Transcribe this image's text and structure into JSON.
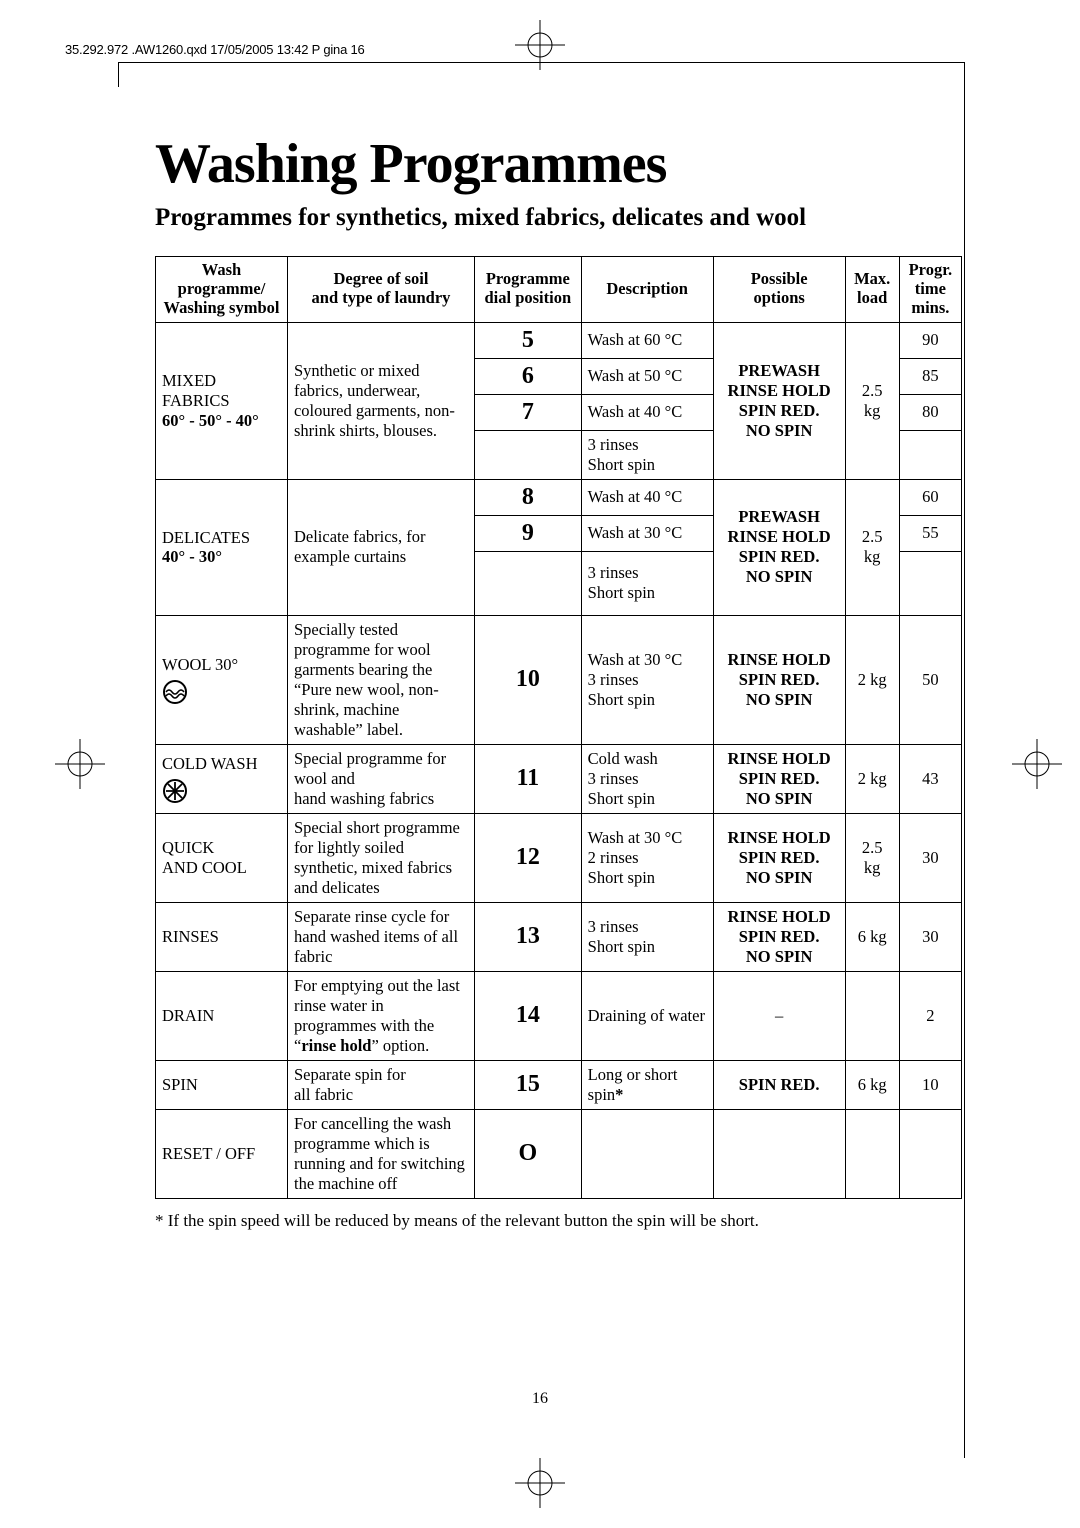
{
  "slug": "35.292.972 .AW1260.qxd 17/05/2005 13:42 P gina 16",
  "title": "Washing Programmes",
  "subtitle": "Programmes for synthetics, mixed fabrics, delicates and wool",
  "footnote": "* If the spin speed will be reduced by means of the relevant button the spin will be short.",
  "page_number": "16",
  "headers": {
    "c1": "Wash programme/\nWashing symbol",
    "c2": "Degree of soil\nand type of laundry",
    "c3": "Programme\ndial position",
    "c4": "Description",
    "c5": "Possible\noptions",
    "c6": "Max.\nload",
    "c7": "Progr.\ntime\nmins."
  },
  "mixed": {
    "prog_l1": "MIXED",
    "prog_l2": "FABRICS",
    "prog_l3": "60° - 50° - 40°",
    "soil": "Synthetic or mixed fabrics, underwear, coloured garments, non-shrink shirts, blouses.",
    "d5": "5",
    "d6": "6",
    "d7": "7",
    "desc5": "Wash at 60 °C",
    "desc6": "Wash at 50 °C",
    "desc7": "Wash at 40 °C",
    "desc8": "3 rinses\nShort spin",
    "opt": "PREWASH\nRINSE HOLD\nSPIN RED.\nNO SPIN",
    "load": "2.5 kg",
    "t5": "90",
    "t6": "85",
    "t7": "80"
  },
  "delicates": {
    "prog_l1": "DELICATES",
    "prog_l2": "40° - 30°",
    "soil": "Delicate fabrics, for example curtains",
    "d8": "8",
    "d9": "9",
    "desc8": "Wash at 40 °C",
    "desc9": "Wash at 30 °C",
    "desc10": "3 rinses\nShort spin",
    "opt": "PREWASH\nRINSE HOLD\nSPIN RED.\nNO SPIN",
    "load": "2.5 kg",
    "t8": "60",
    "t9": "55"
  },
  "wool": {
    "prog": "WOOL 30°",
    "soil": "Specially tested programme for wool garments bearing the “Pure new wool, non-shrink, machine washable” label.",
    "dial": "10",
    "desc": "Wash at 30 °C\n3 rinses\nShort spin",
    "opt": "RINSE HOLD\nSPIN RED.\nNO SPIN",
    "load": "2 kg",
    "time": "50"
  },
  "cold": {
    "prog": "COLD WASH",
    "soil": "Special programme for wool and\nhand washing fabrics",
    "dial": "11",
    "desc": "Cold wash\n3 rinses\nShort spin",
    "opt": "RINSE HOLD\nSPIN RED.\nNO SPIN",
    "load": "2 kg",
    "time": "43"
  },
  "quick": {
    "prog_l1": "QUICK",
    "prog_l2": "AND COOL",
    "soil": "Special short programme for lightly soiled synthetic, mixed fabrics and delicates",
    "dial": "12",
    "desc": "Wash at 30 °C\n2 rinses\nShort spin",
    "opt": "RINSE HOLD\nSPIN RED.\nNO SPIN",
    "load": "2.5 kg",
    "time": "30"
  },
  "rinses": {
    "prog": "RINSES",
    "soil": "Separate rinse cycle for hand washed items of all fabric",
    "dial": "13",
    "desc": "3 rinses\nShort spin",
    "opt": "RINSE HOLD\nSPIN RED.\nNO SPIN",
    "load": "6 kg",
    "time": "30"
  },
  "drain": {
    "prog": "DRAIN",
    "soil_pre": "For emptying out the last rinse water in programmes with the “",
    "soil_bold": "rinse hold",
    "soil_post": "” option.",
    "dial": "14",
    "desc": "Draining of water",
    "opt": "–",
    "load": "",
    "time": "2"
  },
  "spin": {
    "prog": "SPIN",
    "soil": "Separate spin for\nall fabric",
    "dial": "15",
    "desc_pre": "Long or short spin",
    "desc_star": "*",
    "opt": "SPIN RED.",
    "load": "6 kg",
    "time": "10"
  },
  "reset": {
    "prog": "RESET / OFF",
    "soil": "For cancelling the wash programme which is running and for switching the machine off",
    "dial": "O",
    "desc": "",
    "opt": "",
    "load": "",
    "time": ""
  }
}
